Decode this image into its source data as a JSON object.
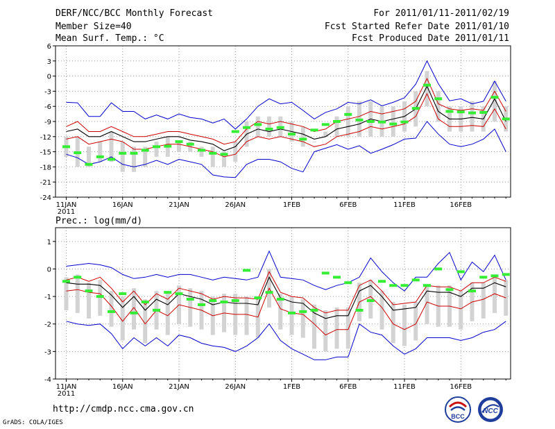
{
  "header": {
    "title": "DERF/NCC/BCC Monthly Forecast",
    "member_size": "Member Size=40",
    "variable": "Mean Surf. Temp.: °C",
    "period": "For 2011/01/11-2011/02/19",
    "fcst_started": "Fcst Started Refer Date 2011/01/10",
    "fcst_produced": "Fcst Produced Date 2011/01/11"
  },
  "footer": {
    "url": "http://cmdp.ncc.cma.gov.cn",
    "credit": "GrADS: COLA/IGES",
    "logo_bcc": "BCC",
    "logo_ncc": "NCC"
  },
  "colors": {
    "max_min": "#0000cc",
    "ensemble": "#cc0000",
    "mean": "#000000",
    "member_box": "#d3d3d3",
    "median": "#33ee33",
    "grid": "#999999"
  },
  "chart_data": [
    {
      "type": "line",
      "title": "Mean Surf. Temp.: °C",
      "x_tick_labels": [
        "11JAN",
        "16JAN",
        "21JAN",
        "26JAN",
        "1FEB",
        "6FEB",
        "11FEB",
        "16FEB"
      ],
      "x_year_label": "2011",
      "ylim": [
        -24,
        6
      ],
      "y_ticks": [
        6,
        3,
        0,
        -3,
        -6,
        -9,
        -12,
        -15,
        -18,
        -21,
        -24
      ],
      "series": [
        {
          "name": "max",
          "values": [
            -5.2,
            -5.3,
            -8,
            -8,
            -5.3,
            -7,
            -7,
            -8.5,
            -7.7,
            -8.5,
            -7.5,
            -8.2,
            -8.5,
            -9.3,
            -8.5,
            -10.5,
            -8.5,
            -6,
            -4.5,
            -5.5,
            -5.2,
            -6.8,
            -8.5,
            -7.2,
            -6.5,
            -5.2,
            -5.5,
            -4.7,
            -5.9,
            -5.2,
            -4.3,
            -1.6,
            3,
            -1.5,
            -4.9,
            -4.5,
            -5.5,
            -5,
            -1,
            -5
          ]
        },
        {
          "name": "ens_upper",
          "values": [
            -10,
            -9,
            -11,
            -11,
            -10,
            -11,
            -12,
            -12,
            -11.5,
            -11,
            -11,
            -11.5,
            -12,
            -12.5,
            -13.5,
            -13,
            -10.5,
            -9,
            -9.5,
            -9,
            -9.5,
            -10,
            -11,
            -10.5,
            -9,
            -8.5,
            -8,
            -7,
            -7.5,
            -7,
            -6.5,
            -5,
            -0.5,
            -5.5,
            -6.5,
            -6.8,
            -6.5,
            -6.8,
            -3,
            -7
          ]
        },
        {
          "name": "mean",
          "values": [
            -11,
            -10.5,
            -12,
            -12,
            -11,
            -12,
            -13,
            -13,
            -12.5,
            -12,
            -12,
            -12.7,
            -13,
            -13.5,
            -14.8,
            -14,
            -11.5,
            -10.5,
            -11,
            -10.5,
            -11,
            -11.5,
            -12.5,
            -12,
            -10.5,
            -10,
            -9.5,
            -8.5,
            -9,
            -8.5,
            -8,
            -6.5,
            -2,
            -7,
            -8.5,
            -8.5,
            -8.2,
            -8.5,
            -4.5,
            -9
          ]
        },
        {
          "name": "ens_lower",
          "values": [
            -12.5,
            -12,
            -13.5,
            -13,
            -12.5,
            -13,
            -14.5,
            -14.5,
            -14,
            -13.5,
            -13.5,
            -14,
            -14.5,
            -15,
            -16,
            -15.5,
            -13,
            -12,
            -12.5,
            -12,
            -12.5,
            -13,
            -14,
            -13.5,
            -12,
            -11.5,
            -11,
            -10,
            -10.5,
            -10,
            -9.5,
            -8,
            -3.5,
            -8.5,
            -10,
            -10,
            -9.8,
            -10,
            -6.5,
            -10.5
          ]
        },
        {
          "name": "min",
          "values": [
            -15.5,
            -16.2,
            -17.5,
            -17,
            -16,
            -17.5,
            -18,
            -17.5,
            -16.7,
            -17.5,
            -16.5,
            -17,
            -17.5,
            -19.6,
            -20,
            -20.1,
            -17.5,
            -16.5,
            -16.5,
            -17,
            -18.3,
            -19,
            -15,
            -14.3,
            -13.6,
            -14.5,
            -13.8,
            -15.3,
            -14.5,
            -13.6,
            -12.5,
            -12.3,
            -9,
            -11.5,
            -13.5,
            -14,
            -13.5,
            -12.5,
            -10.5,
            -15
          ]
        },
        {
          "name": "member_box_high",
          "values": [
            -12,
            -12,
            -14,
            -13,
            -11,
            -13,
            -14,
            -14,
            -13,
            -12,
            -13,
            -13,
            -14,
            -14,
            -15,
            -13,
            -9,
            -8,
            -8,
            -8,
            -9,
            -10,
            -13,
            -11,
            -8,
            -6,
            -5,
            -5,
            -6,
            -6,
            -5,
            -3,
            1,
            -3,
            -6,
            -6,
            -5,
            -6,
            -1,
            -6
          ]
        },
        {
          "name": "member_box_low",
          "values": [
            -16,
            -18,
            -18,
            -17,
            -17,
            -19,
            -19,
            -18,
            -16,
            -16,
            -15,
            -15,
            -16,
            -18,
            -18,
            -17,
            -14,
            -12,
            -12,
            -12,
            -13,
            -14,
            -13,
            -12,
            -12,
            -12,
            -12,
            -12,
            -12,
            -12,
            -11,
            -10,
            -6,
            -9,
            -11,
            -11,
            -11,
            -11,
            -9,
            -11
          ]
        },
        {
          "name": "median",
          "values": [
            -14,
            -15.2,
            -17.5,
            -16,
            -16.5,
            -15.3,
            -15.3,
            -14.7,
            -14,
            -13.9,
            -13,
            -13.5,
            -14.7,
            -15.3,
            -15.5,
            -11,
            -10.2,
            -9.6,
            -10.5,
            -10.2,
            -11.5,
            -12.5,
            -10.7,
            -9.6,
            -9,
            -7.6,
            -8.7,
            -9,
            -9.1,
            -9.5,
            -9.1,
            -6.4,
            -1.8,
            -4.5,
            -7,
            -7.1,
            -7.3,
            -7.2,
            -4.2,
            -8.5
          ]
        }
      ]
    },
    {
      "type": "line",
      "title": "Prec.: log(mm/d)",
      "x_tick_labels": [
        "11JAN",
        "16JAN",
        "21JAN",
        "26JAN",
        "1FEB",
        "6FEB",
        "11FEB",
        "16FEB"
      ],
      "x_year_label": "2011",
      "ylim": [
        -4,
        1.5
      ],
      "y_ticks": [
        1,
        0,
        -1,
        -2,
        -3,
        -4
      ],
      "series": [
        {
          "name": "max",
          "values": [
            0.1,
            0.15,
            0.2,
            0.15,
            0.05,
            -0.2,
            -0.35,
            -0.3,
            -0.2,
            -0.3,
            -0.2,
            -0.2,
            -0.3,
            -0.4,
            -0.3,
            -0.35,
            -0.4,
            -0.3,
            0.65,
            -0.3,
            -0.35,
            -0.4,
            -0.6,
            -0.75,
            -0.6,
            -0.5,
            -0.3,
            0.4,
            -0.1,
            -0.5,
            -0.8,
            -0.3,
            -0.3,
            0.2,
            0.6,
            -0.4,
            0.25,
            -0.1,
            0.5,
            -0.4
          ]
        },
        {
          "name": "ens_upper",
          "values": [
            -0.4,
            -0.3,
            -0.45,
            -0.3,
            -0.7,
            -1.2,
            -0.8,
            -1.3,
            -0.9,
            -1.1,
            -0.7,
            -0.8,
            -0.9,
            -1.1,
            -1,
            -1.05,
            -1.05,
            -1.1,
            -0.1,
            -0.85,
            -1,
            -1.05,
            -1.4,
            -1.6,
            -1.5,
            -1.5,
            -0.6,
            -0.4,
            -0.8,
            -1.3,
            -1.25,
            -1.2,
            -0.6,
            -0.65,
            -0.65,
            -0.8,
            -0.5,
            -0.5,
            -0.3,
            -0.45
          ]
        },
        {
          "name": "mean",
          "values": [
            -0.5,
            -0.55,
            -0.55,
            -0.6,
            -0.95,
            -1.4,
            -1,
            -1.5,
            -1.1,
            -1.3,
            -0.9,
            -1,
            -1.1,
            -1.3,
            -1.2,
            -1.25,
            -1.25,
            -1.3,
            -0.3,
            -1.05,
            -1.2,
            -1.25,
            -1.6,
            -1.8,
            -1.7,
            -1.7,
            -0.8,
            -0.6,
            -1,
            -1.5,
            -1.45,
            -1.4,
            -0.8,
            -0.85,
            -0.85,
            -1,
            -0.7,
            -0.7,
            -0.5,
            -0.65
          ]
        },
        {
          "name": "ens_lower",
          "values": [
            -0.8,
            -0.75,
            -0.85,
            -0.9,
            -1.35,
            -1.9,
            -1.4,
            -2,
            -1.5,
            -1.7,
            -1.3,
            -1.4,
            -1.5,
            -1.7,
            -1.6,
            -1.65,
            -1.65,
            -1.75,
            -0.7,
            -1.45,
            -1.6,
            -1.65,
            -2,
            -2.4,
            -2.2,
            -2.2,
            -1.2,
            -1,
            -1.4,
            -2,
            -2.2,
            -2,
            -1.2,
            -1.35,
            -1.35,
            -1.45,
            -1.2,
            -1.1,
            -0.9,
            -1.05
          ]
        },
        {
          "name": "min",
          "values": [
            -1.9,
            -2,
            -2.05,
            -2,
            -2.35,
            -2.9,
            -2.5,
            -2.8,
            -2.5,
            -2.8,
            -2.4,
            -2.5,
            -2.7,
            -2.8,
            -2.85,
            -3,
            -2.8,
            -2.5,
            -2,
            -2.6,
            -2.9,
            -3.1,
            -3.3,
            -3.3,
            -3.2,
            -3.2,
            -2,
            -2.3,
            -2.4,
            -2.8,
            -3.1,
            -2.9,
            -2.5,
            -2.5,
            -2.5,
            -2.6,
            -2.5,
            -2.3,
            -2.2,
            -1.9
          ]
        },
        {
          "name": "member_box_high",
          "values": [
            -0.3,
            -0.2,
            -0.5,
            -0.4,
            -0.8,
            -1,
            -0.7,
            -1.1,
            -0.8,
            -0.9,
            -0.6,
            -0.7,
            -0.8,
            -1,
            -0.9,
            -0.9,
            -1,
            -1,
            0,
            -0.9,
            -1,
            -1.1,
            -1.3,
            -1.5,
            -1.4,
            -1.4,
            -0.5,
            -0.4,
            -0.8,
            -1.2,
            -1.3,
            -1.2,
            -0.6,
            -0.6,
            -0.6,
            -0.8,
            -0.5,
            -0.5,
            -0.3,
            -0.4
          ]
        },
        {
          "name": "member_box_low",
          "values": [
            -1.5,
            -1.6,
            -1.8,
            -1.7,
            -2.1,
            -2.6,
            -2.2,
            -2.7,
            -2.2,
            -2.4,
            -2,
            -2.1,
            -2.2,
            -2.4,
            -2.3,
            -2.4,
            -2.4,
            -2.5,
            -1.4,
            -2.2,
            -2.4,
            -2.5,
            -2.9,
            -3,
            -2.9,
            -2.9,
            -1.9,
            -1.8,
            -2.2,
            -2.7,
            -2.8,
            -2.6,
            -2,
            -2.1,
            -2.1,
            -2.2,
            -1.9,
            -1.8,
            -1.6,
            -1.7
          ]
        },
        {
          "name": "median",
          "values": [
            -0.45,
            -0.3,
            -0.8,
            -1,
            -1.55,
            -0.9,
            -1.6,
            -1.2,
            -1.5,
            -0.85,
            -0.9,
            -1.1,
            -1.3,
            -1.15,
            -1.2,
            -1.15,
            -0.05,
            -1.05,
            -0.85,
            -1.1,
            -1.6,
            -1.55,
            -1.5,
            -0.15,
            -0.3,
            -0.5,
            -1.5,
            -1.15,
            -0.45,
            -0.6,
            -0.6,
            -0.4,
            -0.6,
            0,
            -0.75,
            -0.1,
            -0.8,
            -0.3,
            -0.25,
            -0.2
          ]
        }
      ]
    }
  ]
}
